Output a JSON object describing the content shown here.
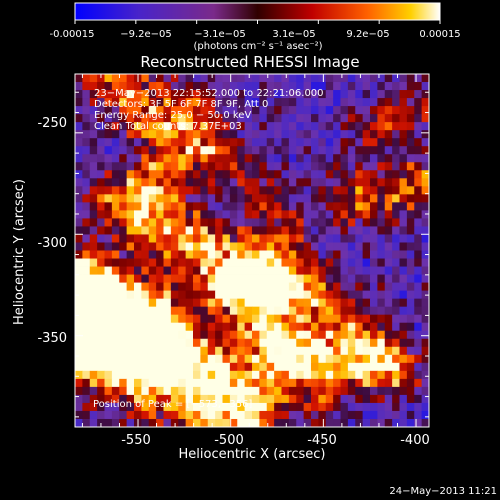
{
  "colorbar": {
    "ticks": [
      "-0.00015",
      "−9.2e−05",
      "−3.1e−05",
      "3.1e−05",
      "9.2e−05",
      "0.00015"
    ],
    "unit_label": "(photons cm⁻² s⁻¹ asec⁻²)",
    "gradient_colors": [
      "#0000ff",
      "#3a1fd0",
      "#7a2a9a",
      "#3a0000",
      "#c00000",
      "#ff5a00",
      "#ffc000",
      "#ffffff"
    ]
  },
  "chart_data": {
    "type": "heatmap",
    "title": "Reconstructed RHESSI Image",
    "xlabel": "Heliocentric X (arcsec)",
    "ylabel": "Heliocentric Y (arcsec)",
    "xlim": [
      -584,
      -393
    ],
    "ylim": [
      -395,
      -221
    ],
    "xticks": [
      -550,
      -500,
      -450,
      -400
    ],
    "yticks": [
      -350,
      -300,
      -250
    ],
    "annotations": [
      "23−May−2013 22:15:52.000 to 22:21:06.000",
      "Detectors: 3F 5F 6F 7F 8F 9F, Att 0",
      "Energy Range: 25.0 − 50.0 keV",
      "Clean     Total counts: 7.37E+03"
    ],
    "peak_label": "Position of Peak = [−573,−356]",
    "peak": [
      -573,
      -356
    ],
    "grid_cells": [
      48,
      44
    ]
  },
  "footer": {
    "timestamp": "24−May−2013 11:21"
  }
}
